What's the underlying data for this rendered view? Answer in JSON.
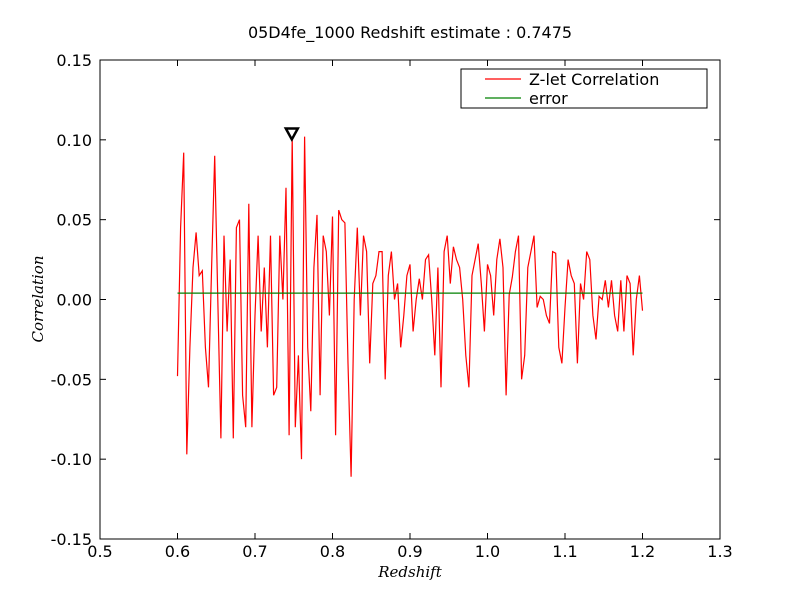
{
  "chart_data": {
    "type": "line",
    "title": "05D4fe_1000 Redshift estimate : 0.7475",
    "x_label": "Redshift",
    "y_label": "Correlation",
    "x": [
      0.6,
      0.604,
      0.608,
      0.612,
      0.616,
      0.62,
      0.624,
      0.628,
      0.632,
      0.636,
      0.64,
      0.644,
      0.648,
      0.652,
      0.656,
      0.66,
      0.664,
      0.668,
      0.672,
      0.676,
      0.68,
      0.684,
      0.688,
      0.692,
      0.696,
      0.7,
      0.704,
      0.708,
      0.712,
      0.716,
      0.72,
      0.724,
      0.728,
      0.732,
      0.736,
      0.74,
      0.744,
      0.748,
      0.752,
      0.756,
      0.76,
      0.764,
      0.768,
      0.772,
      0.776,
      0.78,
      0.784,
      0.788,
      0.792,
      0.796,
      0.8,
      0.804,
      0.808,
      0.812,
      0.816,
      0.82,
      0.824,
      0.828,
      0.832,
      0.836,
      0.84,
      0.844,
      0.848,
      0.852,
      0.856,
      0.86,
      0.864,
      0.868,
      0.872,
      0.876,
      0.88,
      0.884,
      0.888,
      0.892,
      0.896,
      0.9,
      0.904,
      0.908,
      0.912,
      0.916,
      0.92,
      0.924,
      0.928,
      0.932,
      0.936,
      0.94,
      0.944,
      0.948,
      0.952,
      0.956,
      0.96,
      0.964,
      0.968,
      0.972,
      0.976,
      0.98,
      0.984,
      0.988,
      0.992,
      0.996,
      1.0,
      1.004,
      1.008,
      1.012,
      1.016,
      1.02,
      1.024,
      1.028,
      1.032,
      1.036,
      1.04,
      1.044,
      1.048,
      1.052,
      1.056,
      1.06,
      1.064,
      1.068,
      1.072,
      1.076,
      1.08,
      1.084,
      1.088,
      1.092,
      1.096,
      1.1,
      1.104,
      1.108,
      1.112,
      1.116,
      1.12,
      1.124,
      1.128,
      1.132,
      1.136,
      1.14,
      1.144,
      1.148,
      1.152,
      1.156,
      1.16,
      1.164,
      1.168,
      1.172,
      1.176,
      1.18,
      1.184,
      1.188,
      1.192,
      1.196,
      1.2
    ],
    "series": [
      {
        "name": "Z-let Correlation",
        "color": "#ff0000",
        "values": [
          -0.048,
          0.045,
          0.092,
          -0.097,
          -0.03,
          0.02,
          0.042,
          0.015,
          0.018,
          -0.03,
          -0.055,
          0.02,
          0.09,
          0.0,
          -0.087,
          0.04,
          -0.02,
          0.025,
          -0.087,
          0.045,
          0.05,
          -0.06,
          -0.08,
          0.06,
          -0.08,
          -0.01,
          0.04,
          -0.02,
          0.02,
          -0.03,
          0.04,
          -0.06,
          -0.055,
          0.04,
          0.0,
          0.07,
          -0.085,
          0.102,
          -0.08,
          -0.035,
          -0.1,
          0.102,
          -0.03,
          -0.07,
          0.02,
          0.053,
          -0.06,
          0.04,
          0.03,
          -0.01,
          0.052,
          -0.085,
          0.056,
          0.05,
          0.048,
          -0.04,
          -0.111,
          0.0,
          0.045,
          -0.01,
          0.04,
          0.03,
          -0.04,
          0.01,
          0.015,
          0.03,
          0.03,
          -0.05,
          0.015,
          0.03,
          0.0,
          0.01,
          -0.03,
          -0.01,
          0.015,
          0.022,
          -0.02,
          0.0,
          0.013,
          0.0,
          0.025,
          0.028,
          0.0,
          -0.035,
          0.02,
          -0.055,
          0.03,
          0.04,
          0.01,
          0.033,
          0.025,
          0.02,
          0.0,
          -0.035,
          -0.055,
          0.015,
          0.025,
          0.035,
          0.01,
          -0.02,
          0.022,
          0.015,
          -0.01,
          0.025,
          0.038,
          0.02,
          -0.06,
          0.003,
          0.014,
          0.03,
          0.04,
          -0.05,
          -0.035,
          0.02,
          0.03,
          0.04,
          -0.005,
          0.002,
          0.0,
          -0.01,
          -0.015,
          0.03,
          0.029,
          -0.03,
          -0.04,
          -0.005,
          0.025,
          0.015,
          0.01,
          -0.04,
          0.01,
          0.0,
          0.03,
          0.025,
          -0.01,
          -0.025,
          0.002,
          0.0,
          0.012,
          -0.005,
          0.012,
          -0.01,
          -0.02,
          0.012,
          -0.02,
          0.015,
          0.01,
          -0.035,
          0.0,
          0.015,
          -0.007
        ]
      },
      {
        "name": "error",
        "color": "#008000",
        "x": [
          0.6,
          1.2
        ],
        "values": [
          0.004,
          0.004
        ]
      }
    ],
    "estimate_marker": {
      "x": 0.7475,
      "y": 0.104
    },
    "xlim": [
      0.5,
      1.3
    ],
    "ylim": [
      -0.15,
      0.15
    ],
    "xticks": [
      0.5,
      0.6,
      0.7,
      0.8,
      0.9,
      {
        "value": 1.0,
        "label": "1.0"
      },
      1.1,
      1.2,
      1.3
    ],
    "yticks": [
      -0.15,
      {
        "value": -0.1,
        "label": "-0.10"
      },
      -0.05,
      {
        "value": 0,
        "label": "0.00"
      },
      0.05,
      {
        "value": 0.1,
        "label": "0.10"
      },
      0.15
    ],
    "legend": "upper right",
    "grid": false
  }
}
